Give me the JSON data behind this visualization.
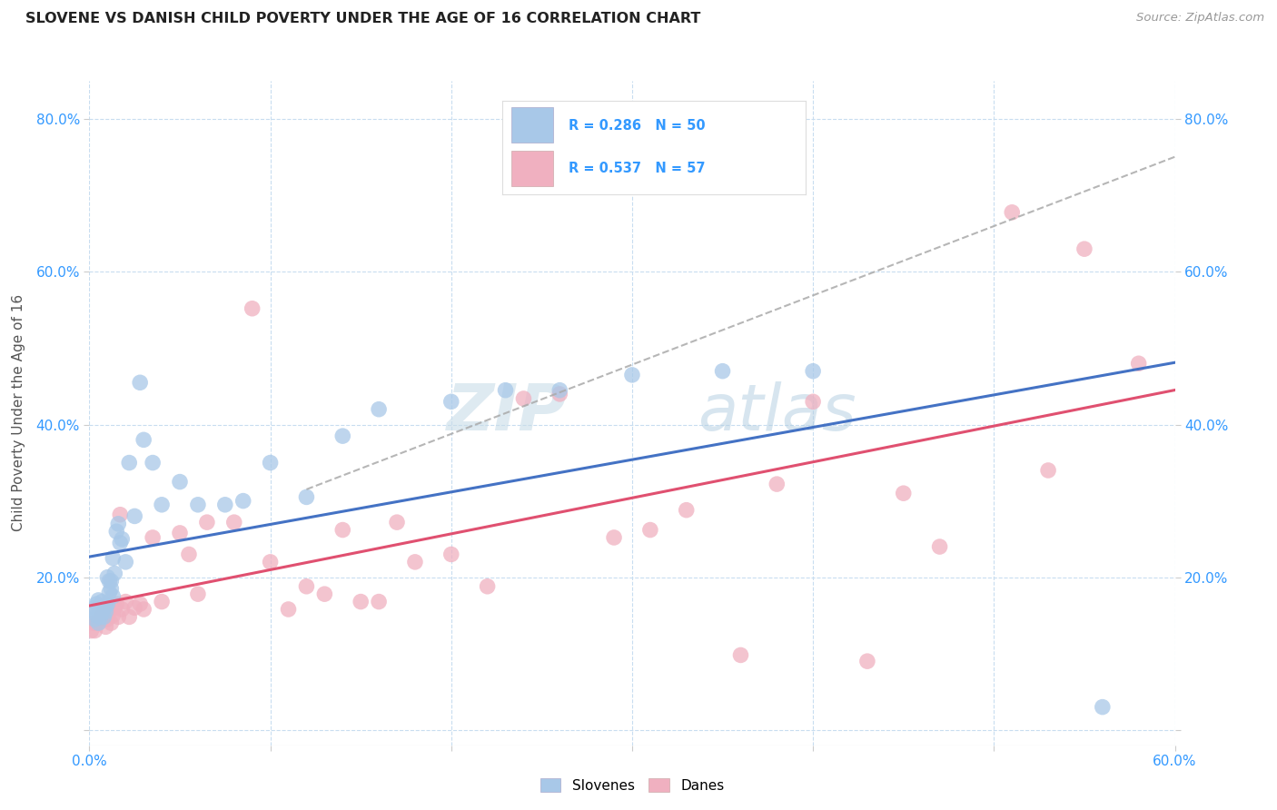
{
  "title": "SLOVENE VS DANISH CHILD POVERTY UNDER THE AGE OF 16 CORRELATION CHART",
  "source": "Source: ZipAtlas.com",
  "ylabel": "Child Poverty Under the Age of 16",
  "xlim": [
    0.0,
    0.6
  ],
  "ylim": [
    -0.02,
    0.85
  ],
  "xticks": [
    0.0,
    0.1,
    0.2,
    0.3,
    0.4,
    0.5,
    0.6
  ],
  "xtick_labels": [
    "0.0%",
    "",
    "",
    "",
    "",
    "",
    "60.0%"
  ],
  "yticks": [
    0.0,
    0.2,
    0.4,
    0.6,
    0.8
  ],
  "ytick_labels_left": [
    "",
    "20.0%",
    "40.0%",
    "60.0%",
    "80.0%"
  ],
  "ytick_labels_right": [
    "",
    "20.0%",
    "40.0%",
    "60.0%",
    "80.0%"
  ],
  "slovenes_color": "#a8c8e8",
  "danes_color": "#f0b0c0",
  "slovenes_R": 0.286,
  "slovenes_N": 50,
  "danes_R": 0.537,
  "danes_N": 57,
  "trend_slovenes_color": "#4472c4",
  "trend_danes_color": "#e05070",
  "trend_dashed_color": "#aaaaaa",
  "watermark": "ZIPatlas",
  "background_color": "#ffffff",
  "grid_color": "#c8ddf0",
  "slovenes_x": [
    0.002,
    0.003,
    0.003,
    0.004,
    0.004,
    0.005,
    0.005,
    0.006,
    0.006,
    0.007,
    0.007,
    0.008,
    0.008,
    0.009,
    0.009,
    0.01,
    0.01,
    0.011,
    0.011,
    0.012,
    0.012,
    0.013,
    0.013,
    0.014,
    0.015,
    0.016,
    0.017,
    0.018,
    0.02,
    0.022,
    0.025,
    0.028,
    0.03,
    0.035,
    0.04,
    0.05,
    0.06,
    0.075,
    0.085,
    0.1,
    0.12,
    0.14,
    0.16,
    0.2,
    0.23,
    0.26,
    0.3,
    0.35,
    0.4,
    0.56
  ],
  "slovenes_y": [
    0.155,
    0.145,
    0.16,
    0.15,
    0.165,
    0.14,
    0.17,
    0.148,
    0.158,
    0.155,
    0.168,
    0.148,
    0.158,
    0.162,
    0.155,
    0.165,
    0.2,
    0.18,
    0.195,
    0.195,
    0.185,
    0.175,
    0.225,
    0.205,
    0.26,
    0.27,
    0.245,
    0.25,
    0.22,
    0.35,
    0.28,
    0.455,
    0.38,
    0.35,
    0.295,
    0.325,
    0.295,
    0.295,
    0.3,
    0.35,
    0.305,
    0.385,
    0.42,
    0.43,
    0.445,
    0.445,
    0.465,
    0.47,
    0.47,
    0.03
  ],
  "danes_x": [
    0.001,
    0.002,
    0.003,
    0.004,
    0.005,
    0.006,
    0.007,
    0.008,
    0.009,
    0.01,
    0.011,
    0.012,
    0.013,
    0.014,
    0.015,
    0.016,
    0.017,
    0.018,
    0.02,
    0.022,
    0.025,
    0.028,
    0.03,
    0.035,
    0.04,
    0.05,
    0.055,
    0.06,
    0.065,
    0.08,
    0.09,
    0.1,
    0.11,
    0.12,
    0.13,
    0.14,
    0.15,
    0.16,
    0.17,
    0.18,
    0.2,
    0.22,
    0.24,
    0.26,
    0.29,
    0.31,
    0.33,
    0.36,
    0.38,
    0.4,
    0.43,
    0.45,
    0.47,
    0.51,
    0.53,
    0.55,
    0.58
  ],
  "danes_y": [
    0.13,
    0.14,
    0.13,
    0.14,
    0.14,
    0.145,
    0.15,
    0.155,
    0.135,
    0.145,
    0.155,
    0.14,
    0.15,
    0.16,
    0.165,
    0.148,
    0.282,
    0.158,
    0.168,
    0.148,
    0.16,
    0.165,
    0.158,
    0.252,
    0.168,
    0.258,
    0.23,
    0.178,
    0.272,
    0.272,
    0.552,
    0.22,
    0.158,
    0.188,
    0.178,
    0.262,
    0.168,
    0.168,
    0.272,
    0.22,
    0.23,
    0.188,
    0.434,
    0.44,
    0.252,
    0.262,
    0.288,
    0.098,
    0.322,
    0.43,
    0.09,
    0.31,
    0.24,
    0.678,
    0.34,
    0.63,
    0.48
  ]
}
